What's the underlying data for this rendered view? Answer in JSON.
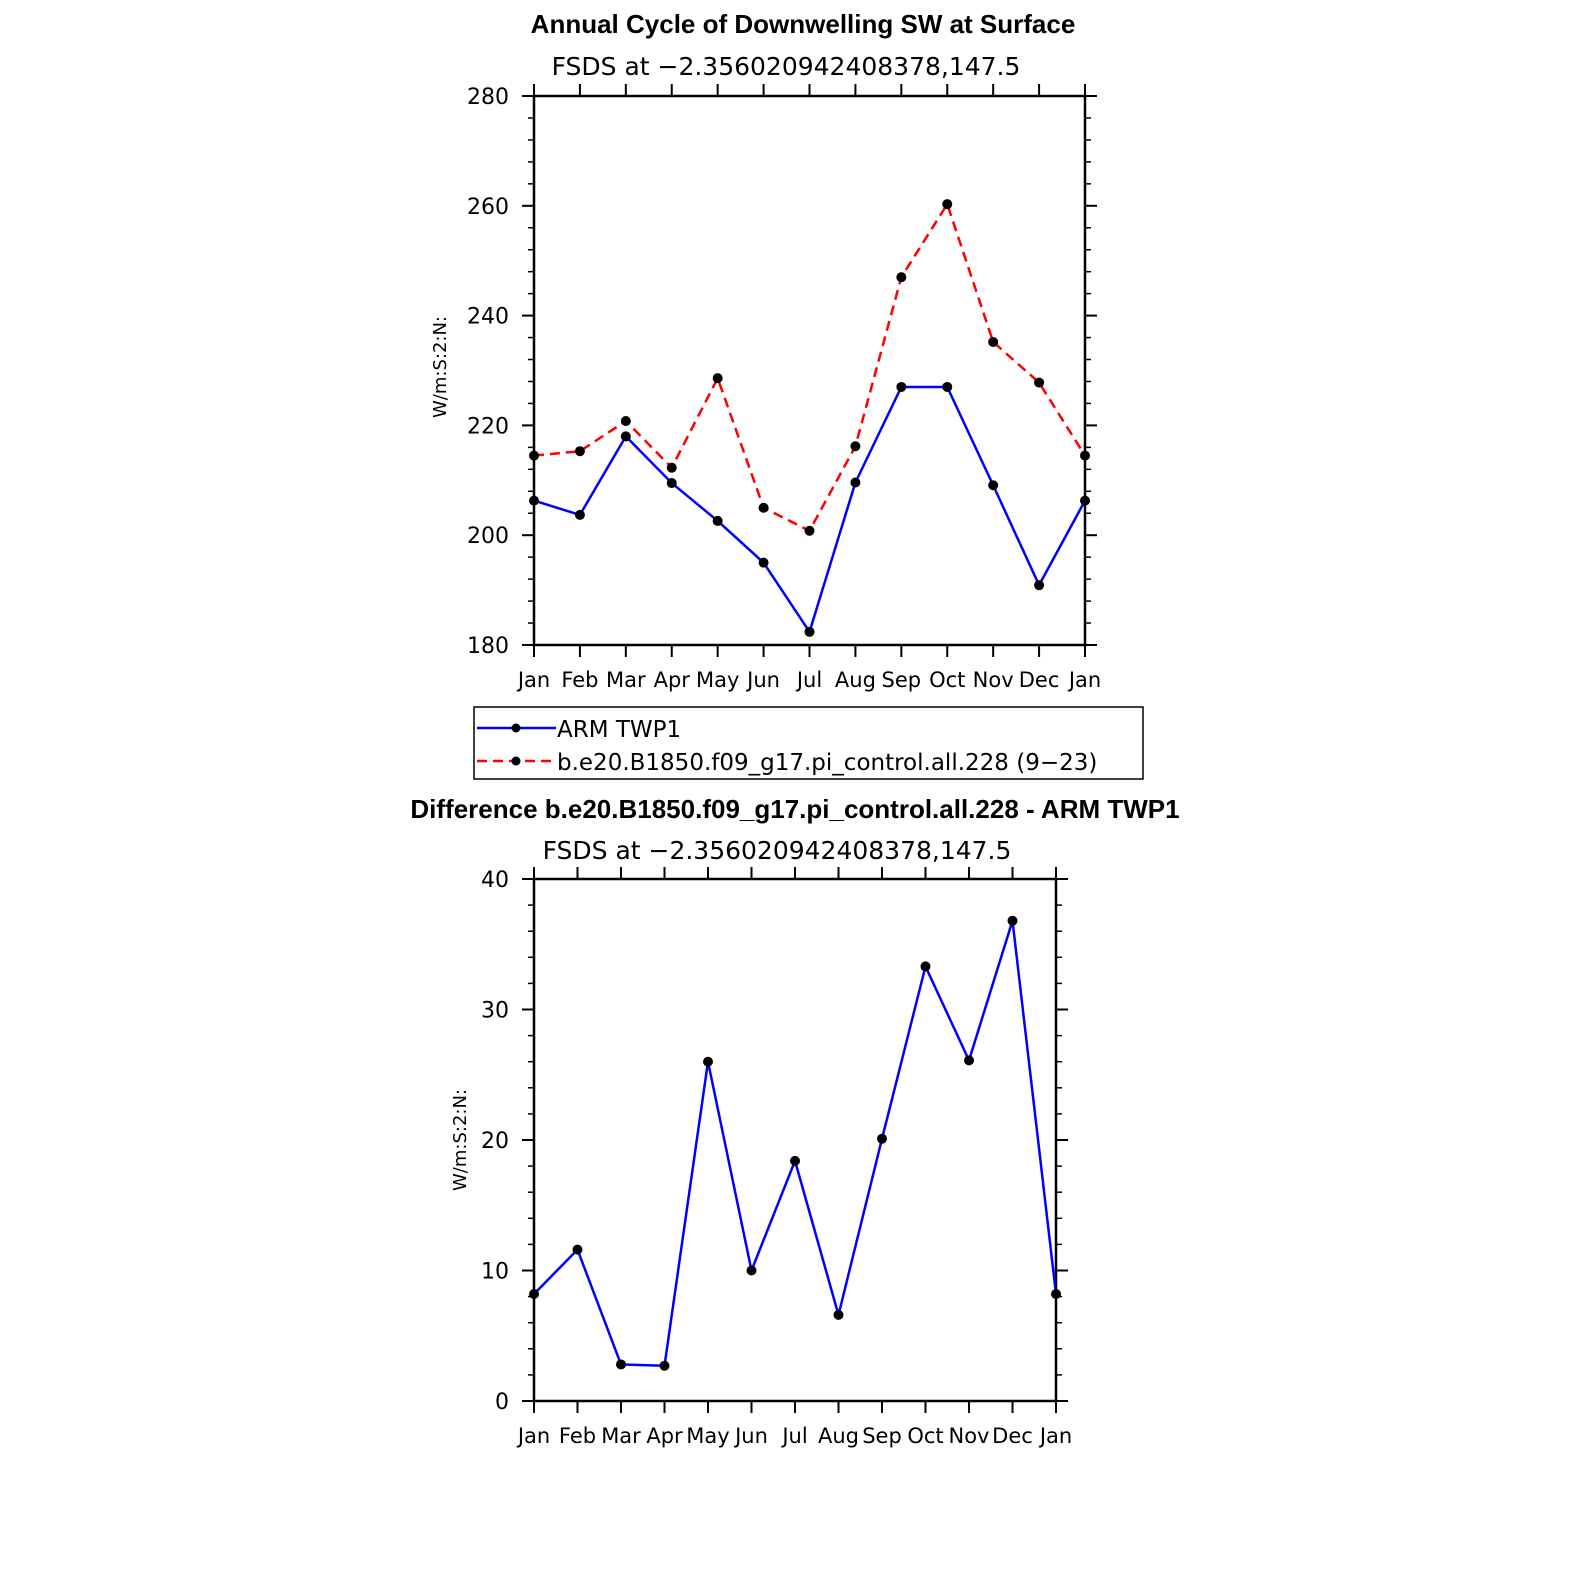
{
  "chart_data": [
    {
      "type": "line",
      "title": "Annual Cycle of Downwelling SW at Surface",
      "subtitle": "FSDS at −2.356020942408378,147.5",
      "ylabel": "W/m:S:2:N:",
      "categories": [
        "Jan",
        "Feb",
        "Mar",
        "Apr",
        "May",
        "Jun",
        "Jul",
        "Aug",
        "Sep",
        "Oct",
        "Nov",
        "Dec",
        "Jan"
      ],
      "ylim": [
        180,
        280
      ],
      "yticks": [
        180,
        200,
        220,
        240,
        260,
        280
      ],
      "series": [
        {
          "name": "ARM TWP1",
          "color": "#0000ff",
          "dash": "solid",
          "values": [
            206.3,
            203.7,
            218.0,
            209.5,
            202.6,
            195.0,
            182.4,
            209.6,
            227.0,
            227.0,
            209.1,
            190.9,
            206.3
          ]
        },
        {
          "name": "b.e20.B1850.f09_g17.pi_control.all.228 (9−23)",
          "color": "#ff0000",
          "dash": "dashed",
          "values": [
            214.5,
            215.3,
            220.8,
            212.3,
            228.6,
            205.0,
            200.8,
            216.2,
            247.0,
            260.3,
            235.2,
            227.8,
            214.5
          ]
        }
      ],
      "legend": "below"
    },
    {
      "type": "line",
      "title": "Difference b.e20.B1850.f09_g17.pi_control.all.228 - ARM TWP1",
      "subtitle": "FSDS at −2.356020942408378,147.5",
      "ylabel": "W/m:S:2:N:",
      "categories": [
        "Jan",
        "Feb",
        "Mar",
        "Apr",
        "May",
        "Jun",
        "Jul",
        "Aug",
        "Sep",
        "Oct",
        "Nov",
        "Dec",
        "Jan"
      ],
      "ylim": [
        0,
        40
      ],
      "yticks": [
        0,
        10,
        20,
        30,
        40
      ],
      "series": [
        {
          "color": "#0000ff",
          "dash": "solid",
          "values": [
            8.2,
            11.6,
            2.8,
            2.7,
            26.0,
            10.0,
            18.4,
            6.6,
            20.1,
            33.3,
            26.1,
            36.8,
            8.2
          ]
        }
      ]
    }
  ]
}
